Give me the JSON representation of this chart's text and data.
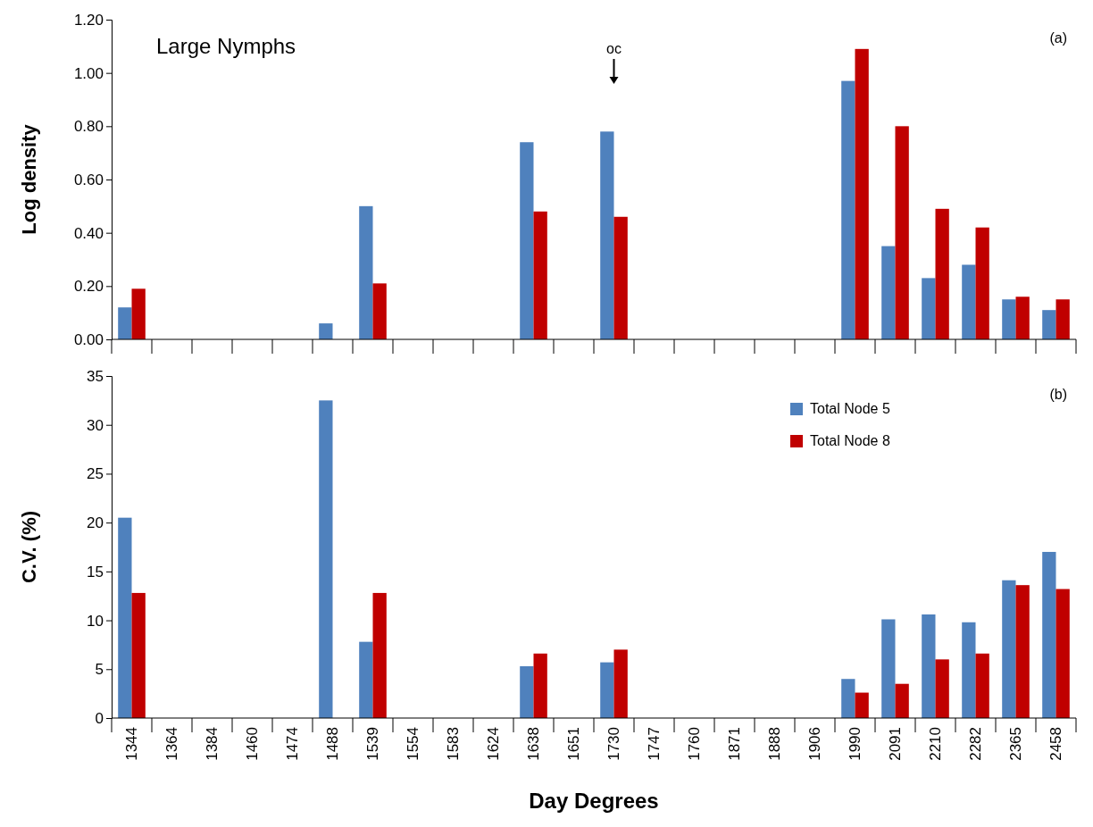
{
  "chart_data": [
    {
      "type": "bar",
      "ylabel": "Log density",
      "annotations": [
        "Large Nymphs",
        "(a)",
        "oc"
      ],
      "categories": [
        null,
        null,
        null,
        null,
        null,
        null,
        null,
        null,
        null,
        null,
        null,
        null,
        null,
        null,
        null,
        null,
        null,
        null,
        null,
        null,
        null,
        null,
        null,
        null
      ],
      "series": [
        {
          "color": "#4f81bd",
          "values": [
            0.12,
            null,
            null,
            null,
            null,
            0.06,
            0.5,
            null,
            null,
            null,
            0.74,
            null,
            0.78,
            null,
            null,
            null,
            null,
            null,
            0.97,
            0.35,
            0.23,
            0.28,
            0.15,
            0.11
          ]
        },
        {
          "color": "#c00000",
          "values": [
            0.19,
            null,
            null,
            null,
            null,
            null,
            0.21,
            null,
            null,
            null,
            0.48,
            null,
            0.46,
            null,
            null,
            null,
            null,
            null,
            1.09,
            0.8,
            0.49,
            0.42,
            0.16,
            0.15
          ]
        }
      ],
      "ylim": [
        0,
        1.2
      ],
      "yticks": [
        {
          "value": 0,
          "label": "0.00"
        },
        {
          "value": 0.2,
          "label": "0.20"
        },
        {
          "value": 0.4,
          "label": "0.40"
        },
        {
          "value": 0.6,
          "label": "0.60"
        },
        {
          "value": 0.8,
          "label": "0.80"
        },
        {
          "value": 1.0,
          "label": "1.00"
        },
        {
          "value": 1.2,
          "label": "1.20"
        }
      ],
      "tick_labels": "y",
      "grid": false,
      "legend": false
    },
    {
      "type": "bar",
      "ylabel": "C.V. (%)",
      "xlabel": "Day Degrees",
      "annotations": [
        "(b)"
      ],
      "categories": [
        "1344",
        "1364",
        "1384",
        "1460",
        "1474",
        "1488",
        "1539",
        "1554",
        "1583",
        "1624",
        "1638",
        "1651",
        "1730",
        "1747",
        "1760",
        "1871",
        "1888",
        "1906",
        "1990",
        "2091",
        "2210",
        "2282",
        "2365",
        "2458"
      ],
      "series": [
        {
          "name": "Total Node 5",
          "color": "#4f81bd",
          "values": [
            20.5,
            null,
            null,
            null,
            null,
            32.5,
            7.8,
            null,
            null,
            null,
            5.3,
            null,
            5.7,
            null,
            null,
            null,
            null,
            null,
            4.0,
            10.1,
            10.6,
            9.8,
            14.1,
            17.0
          ]
        },
        {
          "name": "Total Node 8",
          "color": "#c00000",
          "values": [
            12.8,
            null,
            null,
            null,
            null,
            null,
            12.8,
            null,
            null,
            null,
            6.6,
            null,
            7.0,
            null,
            null,
            null,
            null,
            null,
            2.6,
            3.5,
            6.0,
            6.6,
            13.6,
            13.2
          ]
        }
      ],
      "ylim": [
        0,
        35
      ],
      "yticks": [
        0,
        5,
        10,
        15,
        20,
        25,
        30,
        35
      ],
      "grid": false,
      "legend": "top right"
    }
  ]
}
